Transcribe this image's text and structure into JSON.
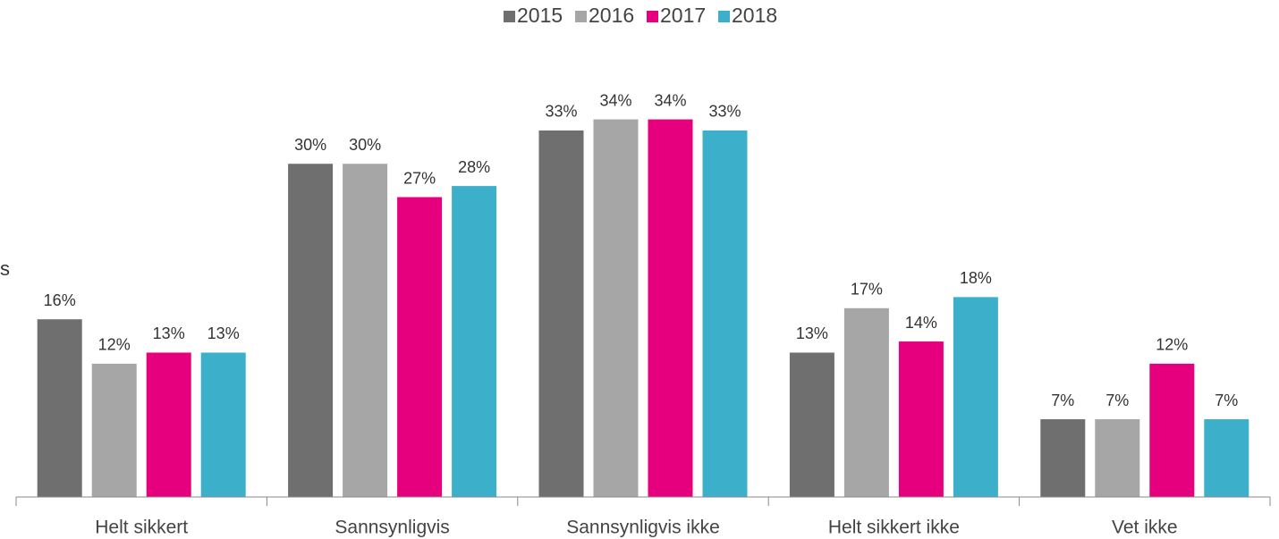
{
  "chart_data": {
    "type": "bar",
    "ylabel": "s",
    "categories": [
      "Helt sikkert",
      "Sannsynligvis",
      "Sannsynligvis ikke",
      "Helt sikkert ikke",
      "Vet ikke"
    ],
    "series": [
      {
        "name": "2015",
        "color": "#6f6f6f",
        "values": [
          16,
          30,
          33,
          13,
          7
        ],
        "value_labels": [
          "16%",
          "30%",
          "33%",
          "13%",
          "7%"
        ]
      },
      {
        "name": "2016",
        "color": "#a6a6a6",
        "values": [
          12,
          30,
          34,
          17,
          7
        ],
        "value_labels": [
          "12%",
          "30%",
          "34%",
          "17%",
          "7%"
        ]
      },
      {
        "name": "2017",
        "color": "#e6007e",
        "values": [
          13,
          27,
          34,
          14,
          12
        ],
        "value_labels": [
          "13%",
          "27%",
          "34%",
          "14%",
          "12%"
        ]
      },
      {
        "name": "2018",
        "color": "#3cb0cb",
        "values": [
          13,
          28,
          33,
          18,
          7
        ],
        "value_labels": [
          "13%",
          "28%",
          "33%",
          "18%",
          "7%"
        ]
      }
    ],
    "ylim": [
      0,
      40
    ],
    "legend": "top"
  }
}
